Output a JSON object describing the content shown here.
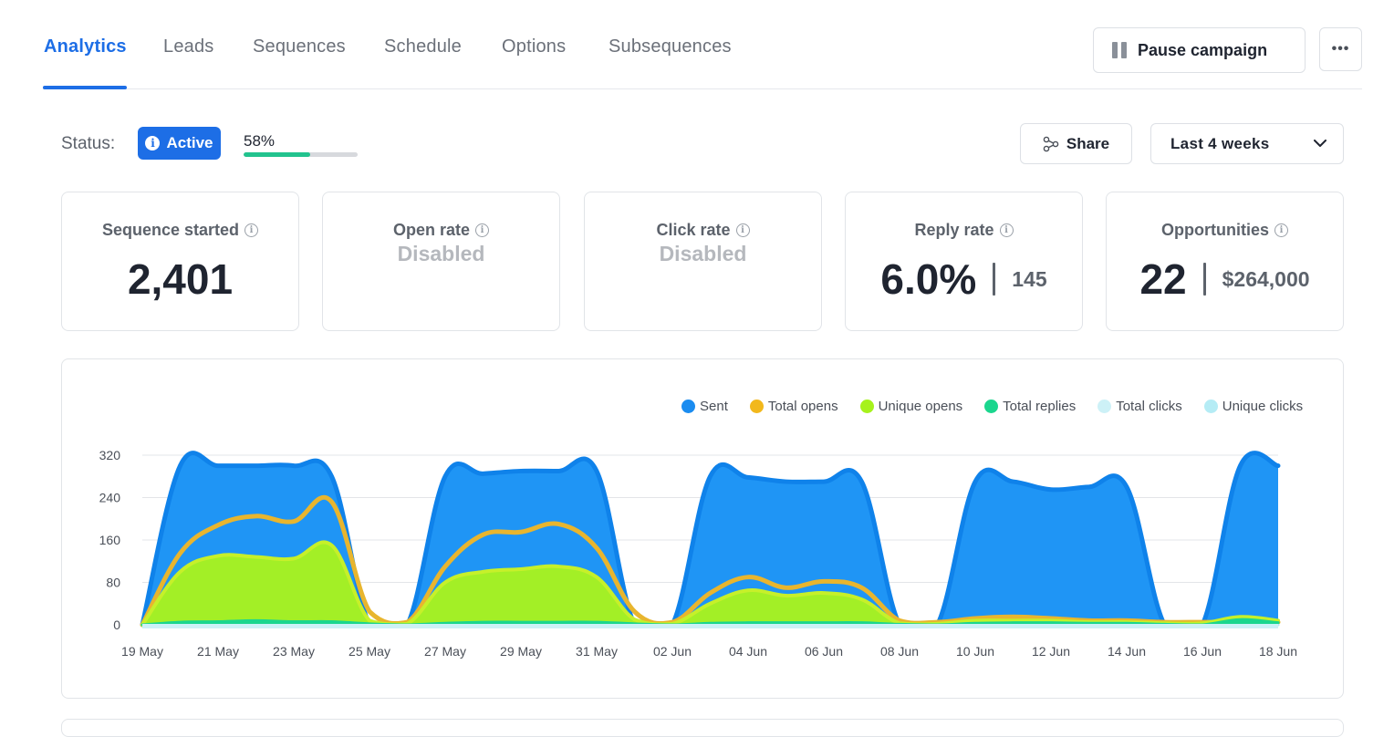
{
  "tabs": [
    {
      "label": "Analytics",
      "active": true
    },
    {
      "label": "Leads"
    },
    {
      "label": "Sequences"
    },
    {
      "label": "Schedule"
    },
    {
      "label": "Options"
    },
    {
      "label": "Subsequences"
    }
  ],
  "toolbar": {
    "pause_label": "Pause campaign",
    "more_label": "•••",
    "share_label": "Share",
    "range_label": "Last 4 weeks"
  },
  "status": {
    "label": "Status:",
    "badge": "Active",
    "progress_text": "58%",
    "progress": 0.58
  },
  "stats": [
    {
      "title": "Sequence started",
      "value": "2,401"
    },
    {
      "title": "Open rate",
      "value": "Disabled"
    },
    {
      "title": "Click rate",
      "value": "Disabled"
    },
    {
      "title": "Reply rate",
      "value": "6.0%",
      "sub": "145"
    },
    {
      "title": "Opportunities",
      "value": "22",
      "sub": "$264,000"
    }
  ],
  "colors": {
    "accent": "#1d6ee6",
    "sent": "#1a8cf0",
    "total_opens": "#f2b81c",
    "unique_opens": "#a6f21c",
    "total_replies": "#1bd68e",
    "total_clicks": "#cdf1f7",
    "unique_clicks": "#b5ecf5",
    "progress": "#22c38e"
  },
  "chart_data": {
    "type": "area",
    "ylim": [
      0,
      320
    ],
    "yticks": [
      0,
      80,
      160,
      240,
      320
    ],
    "x_labels": [
      "19 May",
      "21 May",
      "23 May",
      "25 May",
      "27 May",
      "29 May",
      "31 May",
      "02 Jun",
      "04 Jun",
      "06 Jun",
      "08 Jun",
      "10 Jun",
      "12 Jun",
      "14 Jun",
      "16 Jun",
      "18 Jun"
    ],
    "x": [
      "19 May",
      "20 May",
      "21 May",
      "22 May",
      "23 May",
      "24 May",
      "25 May",
      "26 May",
      "27 May",
      "28 May",
      "29 May",
      "30 May",
      "31 May",
      "01 Jun",
      "02 Jun",
      "03 Jun",
      "04 Jun",
      "05 Jun",
      "06 Jun",
      "07 Jun",
      "08 Jun",
      "09 Jun",
      "10 Jun",
      "11 Jun",
      "12 Jun",
      "13 Jun",
      "14 Jun",
      "15 Jun",
      "16 Jun",
      "17 Jun",
      "18 Jun"
    ],
    "series": [
      {
        "name": "Sent",
        "values": [
          0,
          300,
          300,
          300,
          300,
          280,
          0,
          0,
          280,
          285,
          290,
          290,
          290,
          0,
          0,
          280,
          278,
          270,
          270,
          270,
          0,
          0,
          270,
          270,
          255,
          260,
          260,
          0,
          0,
          300,
          300
        ]
      },
      {
        "name": "Total opens",
        "values": [
          0,
          135,
          188,
          205,
          195,
          232,
          25,
          5,
          110,
          170,
          175,
          190,
          145,
          25,
          5,
          60,
          90,
          70,
          82,
          70,
          8,
          5,
          12,
          15,
          12,
          8,
          8,
          5,
          5,
          5,
          5
        ]
      },
      {
        "name": "Unique opens",
        "values": [
          0,
          100,
          130,
          128,
          125,
          150,
          8,
          2,
          80,
          100,
          105,
          110,
          90,
          10,
          2,
          40,
          65,
          55,
          60,
          48,
          3,
          2,
          8,
          8,
          8,
          5,
          5,
          3,
          3,
          15,
          8
        ]
      },
      {
        "name": "Total replies",
        "values": [
          0,
          5,
          6,
          8,
          6,
          6,
          2,
          0,
          3,
          5,
          5,
          5,
          5,
          2,
          0,
          3,
          4,
          4,
          4,
          4,
          1,
          0,
          3,
          4,
          4,
          3,
          3,
          1,
          0,
          10,
          4
        ]
      },
      {
        "name": "Total clicks",
        "values": [
          0,
          0,
          0,
          0,
          0,
          0,
          0,
          0,
          0,
          0,
          0,
          0,
          0,
          0,
          0,
          0,
          0,
          0,
          0,
          0,
          0,
          0,
          0,
          0,
          0,
          0,
          0,
          0,
          0,
          0,
          0
        ]
      },
      {
        "name": "Unique clicks",
        "values": [
          0,
          0,
          0,
          0,
          0,
          0,
          0,
          0,
          0,
          0,
          0,
          0,
          0,
          0,
          0,
          0,
          0,
          0,
          0,
          0,
          0,
          0,
          0,
          0,
          0,
          0,
          0,
          0,
          0,
          0,
          0
        ]
      }
    ]
  }
}
